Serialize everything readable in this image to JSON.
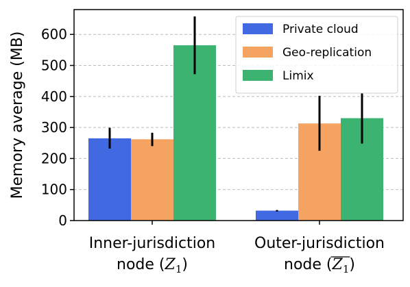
{
  "chart_data": {
    "type": "bar",
    "ylabel": "Memory  average (MB)",
    "ylim": [
      0,
      680
    ],
    "yticks": [
      0,
      100,
      200,
      300,
      400,
      500,
      600
    ],
    "grid": "y-dashed",
    "legend_position": "top-right",
    "categories": [
      {
        "line1": "Inner-jurisdiction",
        "line2_prefix": "node (",
        "math": "Z",
        "sub": "1",
        "line2_suffix": ")",
        "overline": false
      },
      {
        "line1": "Outer-jurisdiction",
        "line2_prefix": "node (",
        "math": "Z",
        "sub": "1",
        "line2_suffix": ")",
        "overline": true
      }
    ],
    "series": [
      {
        "name": "Private cloud",
        "color": "#4169e1",
        "values": [
          265,
          32
        ],
        "err_low": [
          232,
          29
        ],
        "err_high": [
          299,
          34
        ]
      },
      {
        "name": "Geo-replication",
        "color": "#f4a460",
        "values": [
          262,
          313
        ],
        "err_low": [
          240,
          225
        ],
        "err_high": [
          283,
          402
        ]
      },
      {
        "name": "Limix",
        "color": "#3cb371",
        "values": [
          565,
          330
        ],
        "err_low": [
          472,
          248
        ],
        "err_high": [
          658,
          410
        ]
      }
    ]
  }
}
